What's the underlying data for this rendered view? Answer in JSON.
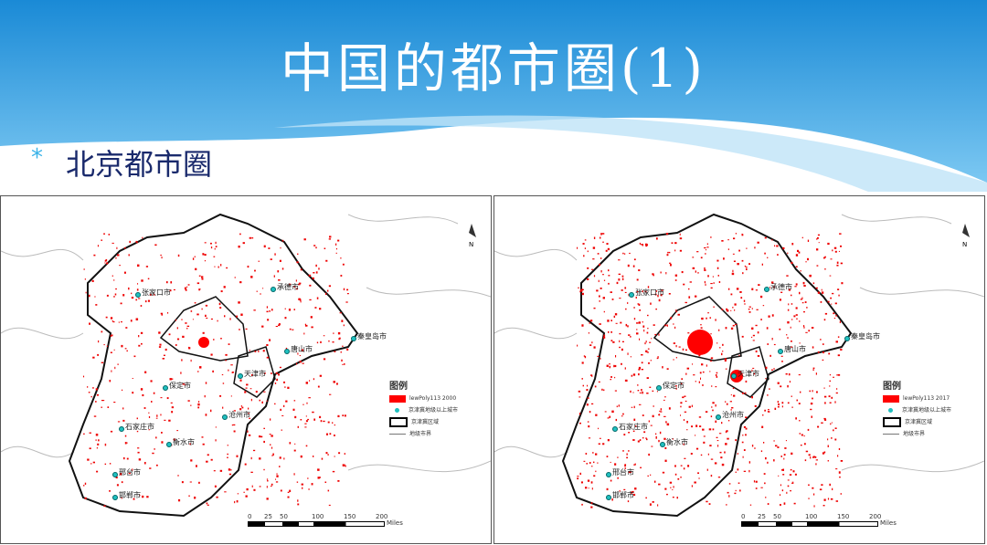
{
  "slide": {
    "title": "中国的都市圈(1)",
    "bullet": "北京都市圈"
  },
  "maps": [
    {
      "year_label": "lewPoly113 2000",
      "legend": {
        "title": "图例",
        "items": [
          "lewPoly113 2000",
          "京津冀地级以上城市",
          "京津冀区域",
          "地级市界"
        ]
      },
      "cities": [
        "张家口市",
        "承德市",
        "秦皇岛市",
        "唐山市",
        "天津市",
        "保定市",
        "沧州市",
        "石家庄市",
        "衡水市",
        "邢台市",
        "邯郸市"
      ]
    },
    {
      "year_label": "lewPoly113 2017",
      "legend": {
        "title": "图例",
        "items": [
          "lewPoly113 2017",
          "京津冀地级以上城市",
          "京津冀区域",
          "地级市界"
        ]
      },
      "cities": [
        "张家口市",
        "承德市",
        "秦皇岛市",
        "唐山市",
        "天津市",
        "保定市",
        "沧州市",
        "石家庄市",
        "衡水市",
        "邢台市",
        "邯郸市"
      ]
    }
  ],
  "scale": {
    "ticks": [
      "0",
      "25",
      "50",
      "100",
      "150",
      "200"
    ],
    "unit": "Miles"
  },
  "north": "N",
  "colors": {
    "urban": "#ff0000",
    "city_point": "#20c0c0",
    "banner_top": "#1e8fd8",
    "subtitle": "#1a2a6c"
  }
}
